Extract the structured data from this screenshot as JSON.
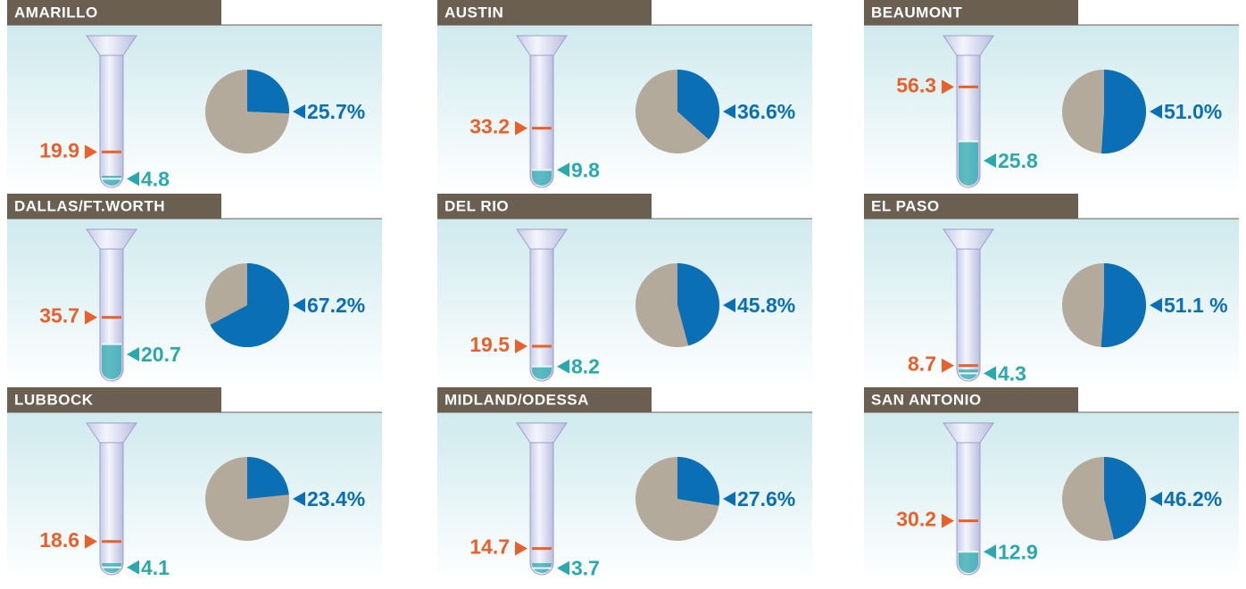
{
  "chart_data": [
    {
      "type": "tube-pie",
      "title": "AMARILLO",
      "marker_value": 19.9,
      "fill_value": 4.8,
      "pie_value": 25.7,
      "pie_label": "25.7%",
      "ylim": [
        0,
        70
      ],
      "colors": {
        "marker": "#e8602c",
        "fill": "#2ba8ad",
        "pie": "#0a6fb5",
        "pie_rest": "#b3aa9b"
      }
    },
    {
      "type": "tube-pie",
      "title": "AUSTIN",
      "marker_value": 33.2,
      "fill_value": 9.8,
      "pie_value": 36.6,
      "pie_label": "36.6%",
      "ylim": [
        0,
        70
      ],
      "colors": {
        "marker": "#e8602c",
        "fill": "#2ba8ad",
        "pie": "#0a6fb5",
        "pie_rest": "#b3aa9b"
      }
    },
    {
      "type": "tube-pie",
      "title": "BEAUMONT",
      "marker_value": 56.3,
      "fill_value": 25.8,
      "pie_value": 51.0,
      "pie_label": "51.0%",
      "ylim": [
        0,
        70
      ],
      "colors": {
        "marker": "#e8602c",
        "fill": "#2ba8ad",
        "pie": "#0a6fb5",
        "pie_rest": "#b3aa9b"
      }
    },
    {
      "type": "tube-pie",
      "title": "DALLAS/FT.WORTH",
      "marker_value": 35.7,
      "fill_value": 20.7,
      "pie_value": 67.2,
      "pie_label": "67.2%",
      "ylim": [
        0,
        70
      ],
      "colors": {
        "marker": "#e8602c",
        "fill": "#2ba8ad",
        "pie": "#0a6fb5",
        "pie_rest": "#b3aa9b"
      }
    },
    {
      "type": "tube-pie",
      "title": "DEL RIO",
      "marker_value": 19.5,
      "fill_value": 8.2,
      "pie_value": 45.8,
      "pie_label": "45.8%",
      "ylim": [
        0,
        70
      ],
      "colors": {
        "marker": "#e8602c",
        "fill": "#2ba8ad",
        "pie": "#0a6fb5",
        "pie_rest": "#b3aa9b"
      }
    },
    {
      "type": "tube-pie",
      "title": "EL PASO",
      "marker_value": 8.7,
      "fill_value": 4.3,
      "pie_value": 51.1,
      "pie_label": "51.1 %",
      "ylim": [
        0,
        70
      ],
      "colors": {
        "marker": "#e8602c",
        "fill": "#2ba8ad",
        "pie": "#0a6fb5",
        "pie_rest": "#b3aa9b"
      }
    },
    {
      "type": "tube-pie",
      "title": "LUBBOCK",
      "marker_value": 18.6,
      "fill_value": 4.1,
      "pie_value": 23.4,
      "pie_label": "23.4%",
      "ylim": [
        0,
        70
      ],
      "colors": {
        "marker": "#e8602c",
        "fill": "#2ba8ad",
        "pie": "#0a6fb5",
        "pie_rest": "#b3aa9b"
      }
    },
    {
      "type": "tube-pie",
      "title": "MIDLAND/ODESSA",
      "marker_value": 14.7,
      "fill_value": 3.7,
      "pie_value": 27.6,
      "pie_label": "27.6%",
      "ylim": [
        0,
        70
      ],
      "colors": {
        "marker": "#e8602c",
        "fill": "#2ba8ad",
        "pie": "#0a6fb5",
        "pie_rest": "#b3aa9b"
      }
    },
    {
      "type": "tube-pie",
      "title": "SAN ANTONIO",
      "marker_value": 30.2,
      "fill_value": 12.9,
      "pie_value": 46.2,
      "pie_label": "46.2%",
      "ylim": [
        0,
        70
      ],
      "colors": {
        "marker": "#e8602c",
        "fill": "#2ba8ad",
        "pie": "#0a6fb5",
        "pie_rest": "#b3aa9b"
      }
    }
  ]
}
